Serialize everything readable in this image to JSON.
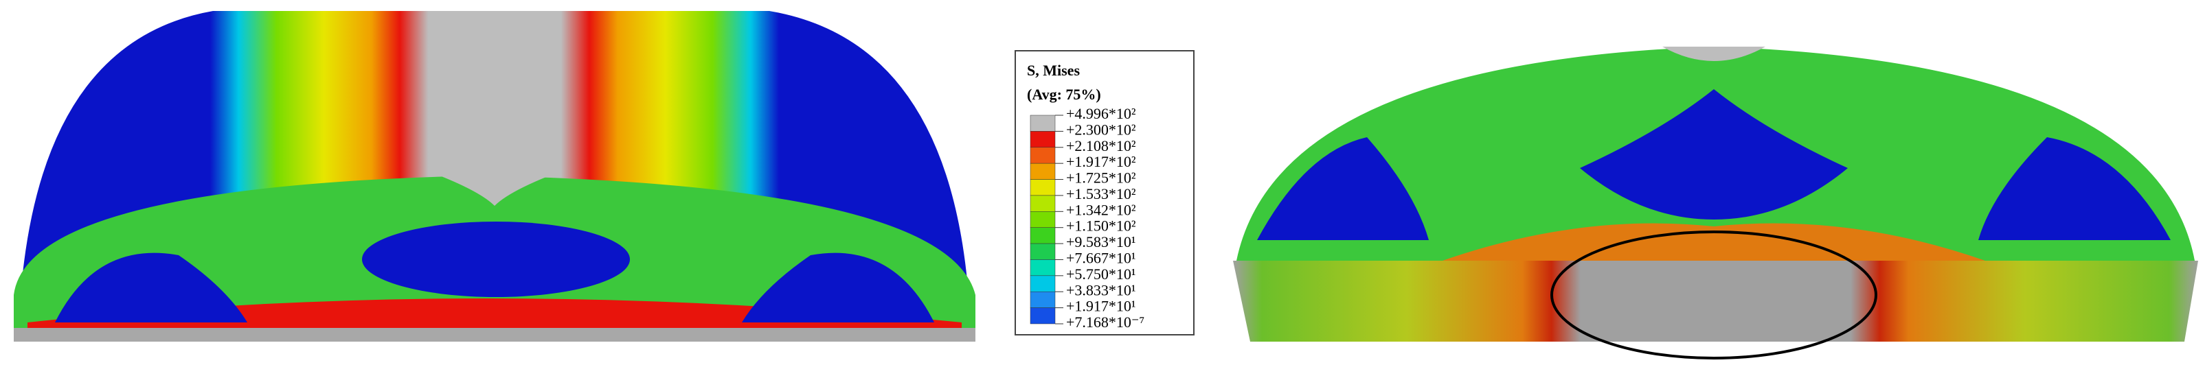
{
  "legend": {
    "title": "S, Mises",
    "subtitle": "(Avg: 75%)",
    "labels": [
      "+4.996*10²",
      "+2.300*10²",
      "+2.108*10²",
      "+1.917*10²",
      "+1.725*10²",
      "+1.533*10²",
      "+1.342*10²",
      "+1.150*10²",
      "+9.583*10¹",
      "+7.667*10¹",
      "+5.750*10¹",
      "+3.833*10¹",
      "+1.917*10¹",
      "+7.168*10⁻⁷"
    ],
    "colors": [
      "#bdbdbd",
      "#e8140c",
      "#ef5a10",
      "#f0a000",
      "#e6e600",
      "#b4e600",
      "#78dc00",
      "#3cd21e",
      "#1ecc50",
      "#00dcb4",
      "#00c8e6",
      "#1e8cf0",
      "#1450e6",
      "#0a14c8"
    ]
  }
}
